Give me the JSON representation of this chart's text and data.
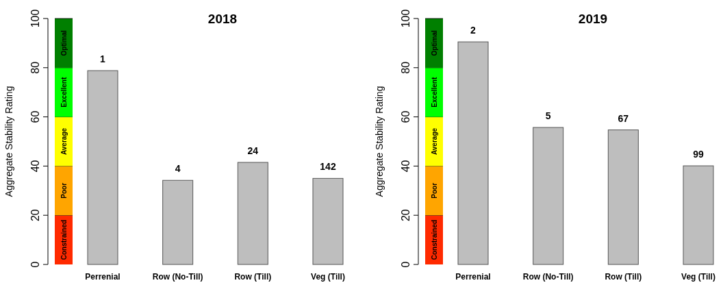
{
  "chart_data": [
    {
      "type": "bar",
      "title": "2018",
      "ylabel": "Aggregate Stability Rating",
      "categories": [
        null,
        "Perrenial",
        "Row (No-Till)",
        "Row (Till)",
        "Veg (Till)"
      ],
      "stacked": true,
      "ylim": [
        0,
        100
      ],
      "yticks": [
        0,
        20,
        40,
        60,
        80,
        100
      ],
      "series": [
        {
          "name": "Constrained",
          "color": "#ff2a00",
          "values": [
            20,
            null,
            null,
            null,
            null
          ]
        },
        {
          "name": "Poor",
          "color": "#ffa500",
          "values": [
            20,
            null,
            null,
            null,
            null
          ]
        },
        {
          "name": "Average",
          "color": "#ffff00",
          "values": [
            20,
            null,
            null,
            null,
            null
          ]
        },
        {
          "name": "Excellent",
          "color": "#00ff00",
          "values": [
            20,
            null,
            null,
            null,
            null
          ]
        },
        {
          "name": "Optimal",
          "color": "#007f00",
          "values": [
            20,
            null,
            null,
            null,
            null
          ]
        },
        {
          "color": "#bebebe",
          "values": [
            null,
            78.8,
            34.2,
            41.5,
            35.0
          ]
        }
      ],
      "annotations": [
        {
          "text": "1",
          "x": "Perrenial",
          "y": 78.8
        },
        {
          "text": "4",
          "x": "Row (No-Till)",
          "y": 34.2
        },
        {
          "text": "24",
          "x": "Row (Till)",
          "y": 41.5
        },
        {
          "text": "142",
          "x": "Veg (Till)",
          "y": 35.0
        }
      ]
    },
    {
      "type": "bar",
      "title": "2019",
      "ylabel": "Aggregate Stability Rating",
      "categories": [
        null,
        "Perrenial",
        "Row (No-Till)",
        "Row (Till)",
        "Veg (Till)"
      ],
      "stacked": true,
      "ylim": [
        0,
        100
      ],
      "yticks": [
        0,
        20,
        40,
        60,
        80,
        100
      ],
      "series": [
        {
          "name": "Constrained",
          "color": "#ff2a00",
          "values": [
            20,
            null,
            null,
            null,
            null
          ]
        },
        {
          "name": "Poor",
          "color": "#ffa500",
          "values": [
            20,
            null,
            null,
            null,
            null
          ]
        },
        {
          "name": "Average",
          "color": "#ffff00",
          "values": [
            20,
            null,
            null,
            null,
            null
          ]
        },
        {
          "name": "Excellent",
          "color": "#00ff00",
          "values": [
            20,
            null,
            null,
            null,
            null
          ]
        },
        {
          "name": "Optimal",
          "color": "#007f00",
          "values": [
            20,
            null,
            null,
            null,
            null
          ]
        },
        {
          "color": "#bebebe",
          "values": [
            null,
            90.5,
            55.7,
            54.7,
            40.1
          ]
        }
      ],
      "annotations": [
        {
          "text": "2",
          "x": "Perrenial",
          "y": 90.5
        },
        {
          "text": "5",
          "x": "Row (No-Till)",
          "y": 55.7
        },
        {
          "text": "67",
          "x": "Row (Till)",
          "y": 54.7
        },
        {
          "text": "99",
          "x": "Veg (Till)",
          "y": 40.1
        }
      ]
    }
  ]
}
